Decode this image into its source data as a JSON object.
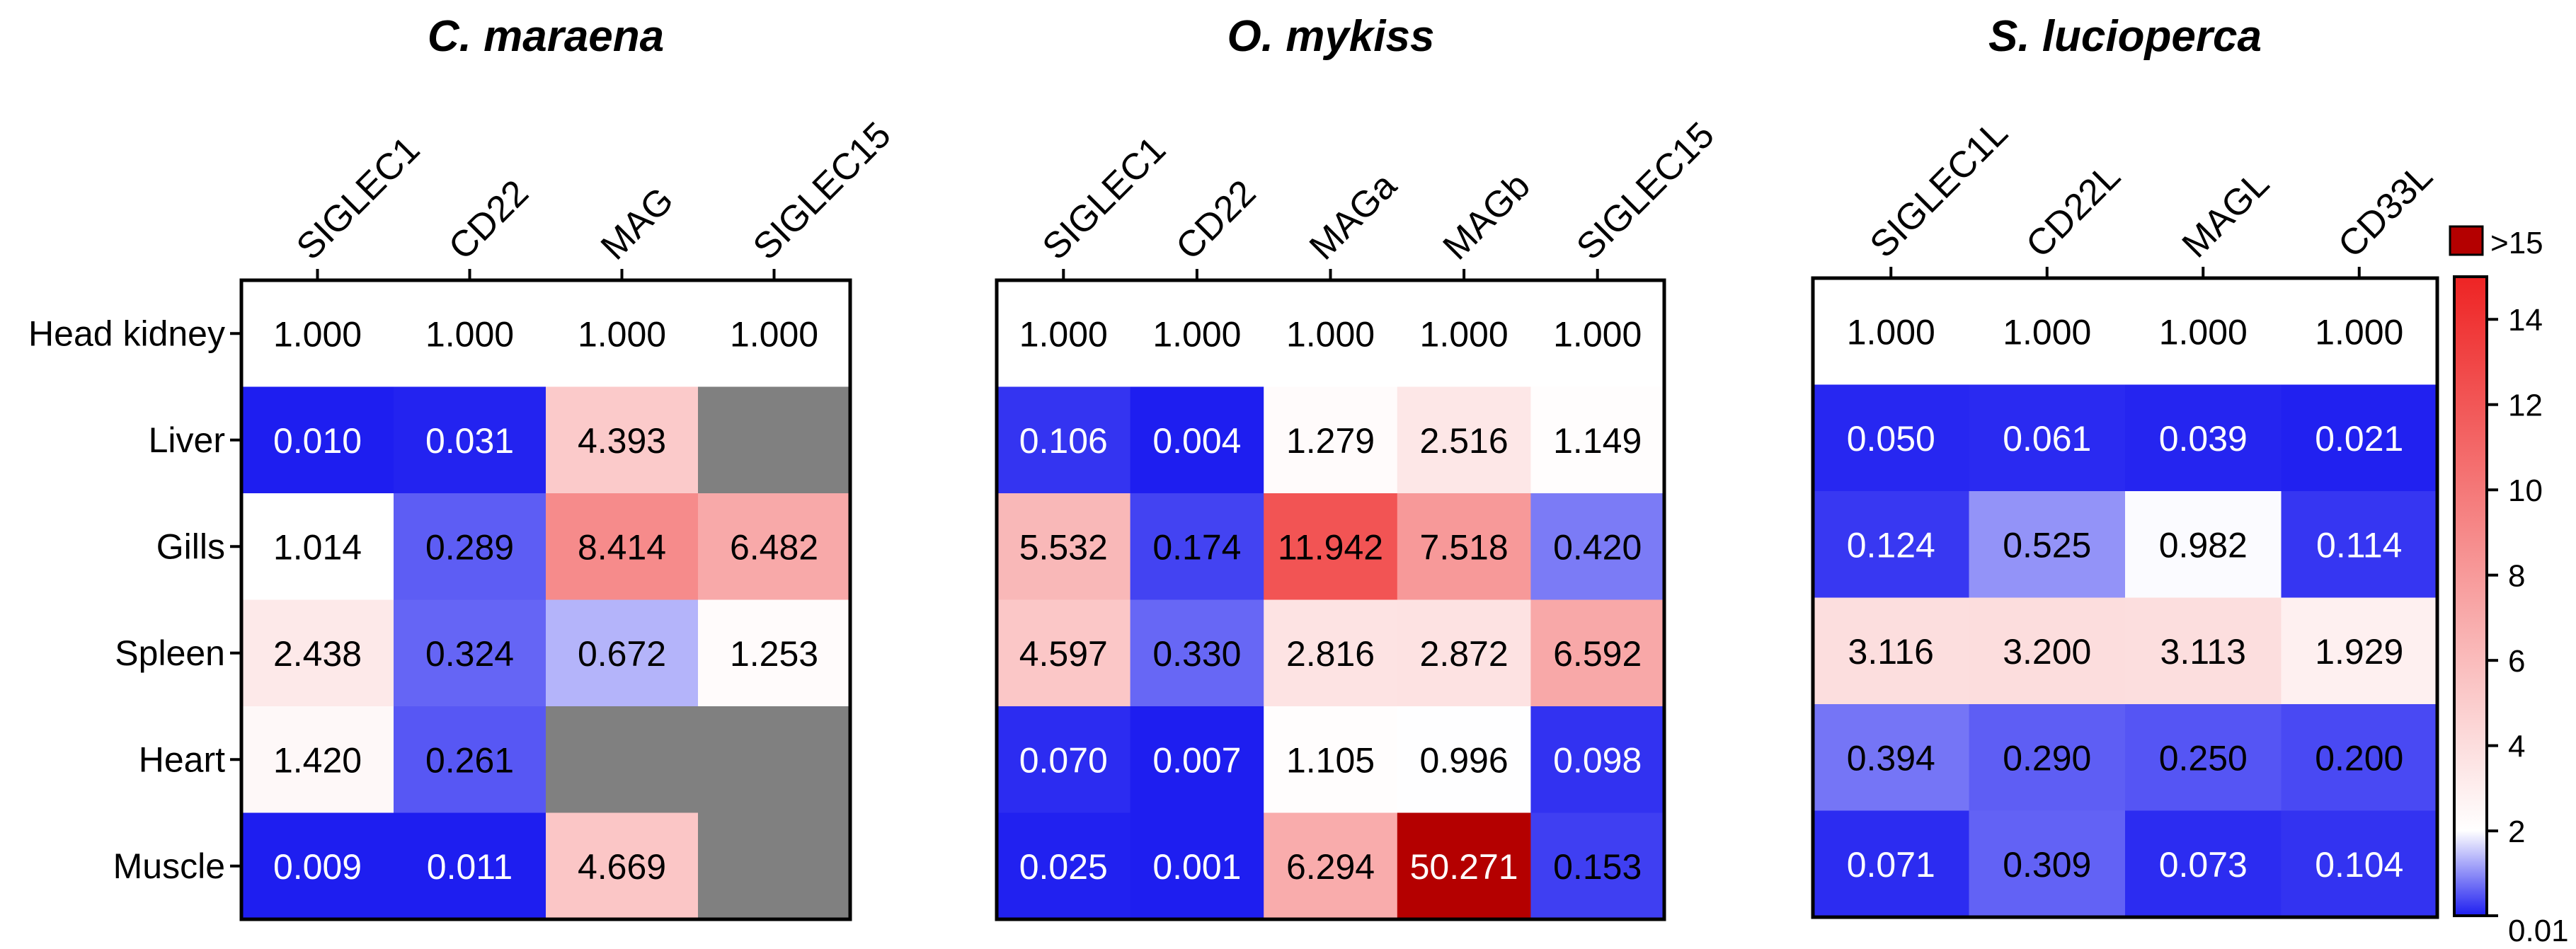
{
  "chart_data": {
    "type": "heatmap",
    "colorbar": {
      "min": 0.01,
      "max": 15,
      "ticks": [
        "0.01",
        "2",
        "4",
        "6",
        "8",
        "10",
        "12",
        "14"
      ],
      "over_label": ">15",
      "colors": {
        "low": "#1e1ef0",
        "mid": "#ffffff",
        "high": "#ee2424",
        "over": "#b40000",
        "missing": "#808080"
      }
    },
    "panels": [
      {
        "title": "C. maraena",
        "columns": [
          "SIGLEC1",
          "CD22",
          "MAG",
          "SIGLEC15"
        ],
        "rows": [
          "Head kidney",
          "Liver",
          "Gills",
          "Spleen",
          "Heart",
          "Muscle"
        ],
        "values": [
          [
            1.0,
            1.0,
            1.0,
            1.0
          ],
          [
            0.01,
            0.031,
            4.393,
            null
          ],
          [
            1.014,
            0.289,
            8.414,
            6.482
          ],
          [
            2.438,
            0.324,
            0.672,
            1.253
          ],
          [
            1.42,
            0.261,
            null,
            null
          ],
          [
            0.009,
            0.011,
            4.669,
            null
          ]
        ],
        "labels": [
          [
            "1.000",
            "1.000",
            "1.000",
            "1.000"
          ],
          [
            "0.010",
            "0.031",
            "4.393",
            ""
          ],
          [
            "1.014",
            "0.289",
            "8.414",
            "6.482"
          ],
          [
            "2.438",
            "0.324",
            "0.672",
            "1.253"
          ],
          [
            "1.420",
            "0.261",
            "",
            ""
          ],
          [
            "0.009",
            "0.011",
            "4.669",
            ""
          ]
        ]
      },
      {
        "title": "O. mykiss",
        "columns": [
          "SIGLEC1",
          "CD22",
          "MAGa",
          "MAGb",
          "SIGLEC15"
        ],
        "rows": [
          "Head kidney",
          "Liver",
          "Gills",
          "Spleen",
          "Heart",
          "Muscle"
        ],
        "values": [
          [
            1.0,
            1.0,
            1.0,
            1.0,
            1.0
          ],
          [
            0.106,
            0.004,
            1.279,
            2.516,
            1.149
          ],
          [
            5.532,
            0.174,
            11.942,
            7.518,
            0.42
          ],
          [
            4.597,
            0.33,
            2.816,
            2.872,
            6.592
          ],
          [
            0.07,
            0.007,
            1.105,
            0.996,
            0.098
          ],
          [
            0.025,
            0.001,
            6.294,
            50.271,
            0.153
          ]
        ],
        "labels": [
          [
            "1.000",
            "1.000",
            "1.000",
            "1.000",
            "1.000"
          ],
          [
            "0.106",
            "0.004",
            "1.279",
            "2.516",
            "1.149"
          ],
          [
            "5.532",
            "0.174",
            "11.942",
            "7.518",
            "0.420"
          ],
          [
            "4.597",
            "0.330",
            "2.816",
            "2.872",
            "6.592"
          ],
          [
            "0.070",
            "0.007",
            "1.105",
            "0.996",
            "0.098"
          ],
          [
            "0.025",
            "0.001",
            "6.294",
            "50.271",
            "0.153"
          ]
        ]
      },
      {
        "title": "S. lucioperca",
        "columns": [
          "SIGLEC1L",
          "CD22L",
          "MAGL",
          "CD33L"
        ],
        "rows": [
          "Head kidney",
          "Liver",
          "Gills",
          "Spleen",
          "Heart",
          "Muscle"
        ],
        "values": [
          [
            1.0,
            1.0,
            1.0,
            1.0
          ],
          [
            0.05,
            0.061,
            0.039,
            0.021
          ],
          [
            0.124,
            0.525,
            0.982,
            0.114
          ],
          [
            3.116,
            3.2,
            3.113,
            1.929
          ],
          [
            0.394,
            0.29,
            0.25,
            0.2
          ],
          [
            0.071,
            0.309,
            0.073,
            0.104
          ]
        ],
        "labels": [
          [
            "1.000",
            "1.000",
            "1.000",
            "1.000"
          ],
          [
            "0.050",
            "0.061",
            "0.039",
            "0.021"
          ],
          [
            "0.124",
            "0.525",
            "0.982",
            "0.114"
          ],
          [
            "3.116",
            "3.200",
            "3.113",
            "1.929"
          ],
          [
            "0.394",
            "0.290",
            "0.250",
            "0.200"
          ],
          [
            "0.071",
            "0.309",
            "0.073",
            "0.104"
          ]
        ]
      }
    ]
  }
}
